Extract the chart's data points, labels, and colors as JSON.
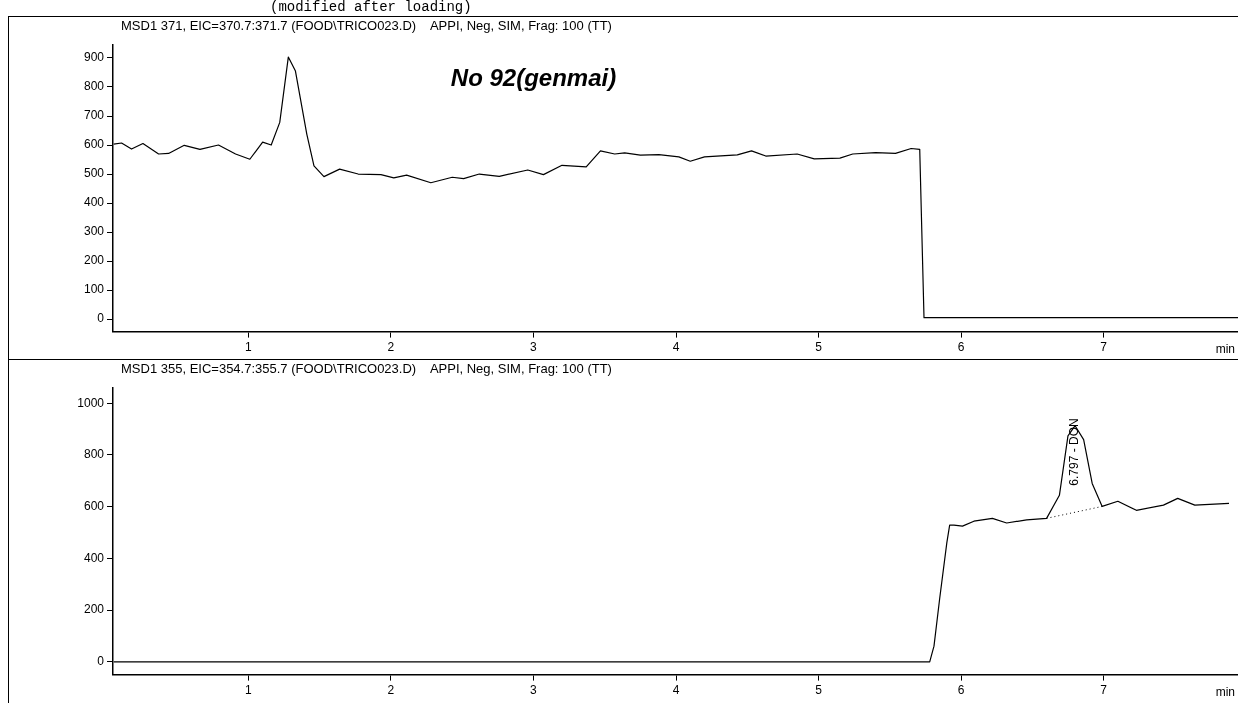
{
  "chart_data": [
    {
      "type": "line",
      "subtitle": "(modified after loading)",
      "title": "MSD1 371, EIC=370.7:371.7 (FOOD\\TRICO023.D)    APPI, Neg, SIM, Frag: 100 (TT)",
      "xlabel": "min",
      "annotations": [
        "No 92(genmai)"
      ],
      "xlim": [
        0.05,
        7.95
      ],
      "ylim": [
        -43,
        944
      ],
      "xticks": [
        1,
        2,
        3,
        4,
        5,
        6,
        7
      ],
      "yticks": [
        0,
        100,
        200,
        300,
        400,
        500,
        600,
        700,
        800,
        900
      ],
      "grid": false,
      "marker": "none",
      "line_style": "solid",
      "series": [
        {
          "color": "#000000",
          "x": [
            0.055,
            0.11,
            0.18,
            0.26,
            0.37,
            0.44,
            0.55,
            0.66,
            0.79,
            0.91,
            1.01,
            1.1,
            1.16,
            1.22,
            1.28,
            1.33,
            1.41,
            1.46,
            1.53,
            1.64,
            1.77,
            1.93,
            2.02,
            2.11,
            2.28,
            2.43,
            2.51,
            2.62,
            2.76,
            2.96,
            3.07,
            3.2,
            3.37,
            3.47,
            3.57,
            3.64,
            3.75,
            3.88,
            4.02,
            4.1,
            4.2,
            4.43,
            4.53,
            4.63,
            4.85,
            4.97,
            5.15,
            5.24,
            5.4,
            5.54,
            5.65,
            5.71,
            5.74,
            7.95
          ],
          "values": [
            603,
            607,
            586,
            605,
            569,
            571,
            599,
            585,
            600,
            569,
            551,
            610,
            600,
            678,
            903,
            855,
            637,
            528,
            491,
            517,
            500,
            498,
            487,
            496,
            470,
            489,
            484,
            500,
            492,
            514,
            498,
            530,
            525,
            580,
            569,
            573,
            565,
            567,
            559,
            544,
            559,
            566,
            580,
            562,
            569,
            552,
            555,
            569,
            574,
            571,
            588,
            585,
            5,
            5
          ]
        }
      ]
    },
    {
      "type": "line",
      "title": "MSD1 355, EIC=354.7:355.7 (FOOD\\TRICO023.D)    APPI, Neg, SIM, Frag: 100 (TT)",
      "xlabel": "min",
      "annotations": [
        {
          "text": "6.797 - DON",
          "x": 6.797,
          "y": 913
        }
      ],
      "xlim": [
        0.05,
        7.95
      ],
      "ylim": [
        -49,
        1058
      ],
      "xticks": [
        1,
        2,
        3,
        4,
        5,
        6,
        7
      ],
      "yticks": [
        0,
        200,
        400,
        600,
        800,
        1000
      ],
      "grid": false,
      "marker": "none",
      "line_style": "solid",
      "series": [
        {
          "color": "#000000",
          "x": [
            0.055,
            5.78,
            5.81,
            5.85,
            5.9,
            5.92,
            5.95,
            6.01,
            6.09,
            6.22,
            6.32,
            6.46,
            6.6,
            6.69,
            6.75,
            6.8,
            6.86,
            6.92,
            6.99,
            7.1,
            7.23,
            7.42,
            7.52,
            7.64,
            7.88
          ],
          "values": [
            0,
            0,
            61,
            245,
            460,
            529,
            529,
            525,
            544,
            555,
            537,
            549,
            555,
            644,
            874,
            913,
            859,
            690,
            601,
            621,
            586,
            606,
            632,
            606,
            613
          ]
        },
        {
          "type": "line",
          "line_style": "dotted",
          "color": "#000000",
          "x": [
            6.6,
            6.99
          ],
          "values": [
            555,
            601
          ]
        }
      ]
    }
  ]
}
